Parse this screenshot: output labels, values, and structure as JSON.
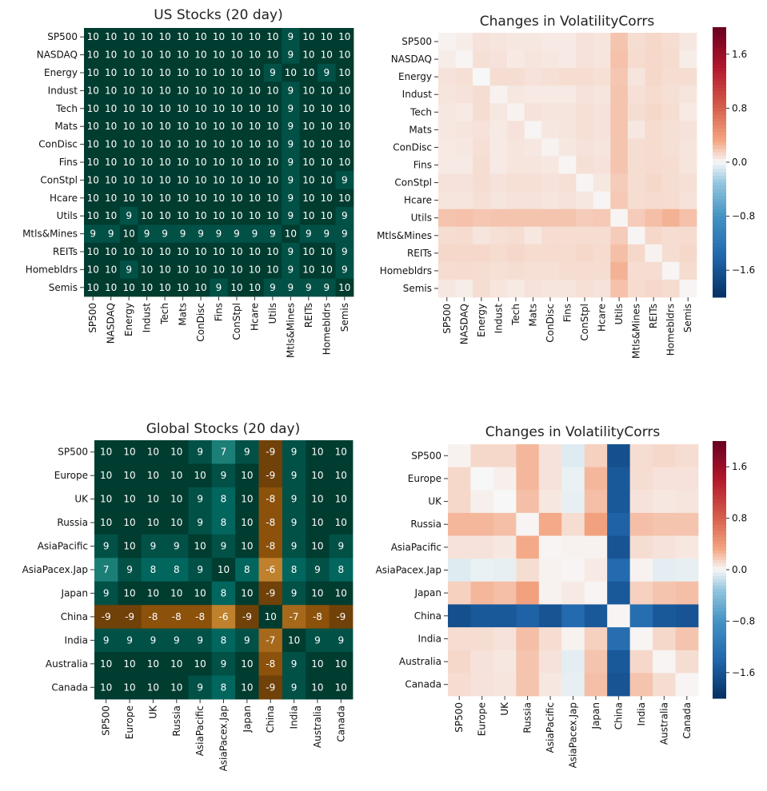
{
  "chart_data": [
    {
      "type": "heatmap",
      "title": "US Stocks (20 day)",
      "palette": "BrBG",
      "vmin": -10,
      "vmax": 10,
      "annotated": true,
      "rows": [
        "SP500",
        "NASDAQ",
        "Energy",
        "Indust",
        "Tech",
        "Mats",
        "ConDisc",
        "Fins",
        "ConStpl",
        "Hcare",
        "Utils",
        "Mtls&Mines",
        "REITs",
        "Homebldrs",
        "Semis"
      ],
      "cols": [
        "SP500",
        "NASDAQ",
        "Energy",
        "Indust",
        "Tech",
        "Mats",
        "ConDisc",
        "Fins",
        "ConStpl",
        "Hcare",
        "Utils",
        "Mtls&Mines",
        "REITs",
        "Homebldrs",
        "Semis"
      ],
      "values": [
        [
          10,
          10,
          10,
          10,
          10,
          10,
          10,
          10,
          10,
          10,
          10,
          9,
          10,
          10,
          10
        ],
        [
          10,
          10,
          10,
          10,
          10,
          10,
          10,
          10,
          10,
          10,
          10,
          9,
          10,
          10,
          10
        ],
        [
          10,
          10,
          10,
          10,
          10,
          10,
          10,
          10,
          10,
          10,
          9,
          10,
          10,
          9,
          10
        ],
        [
          10,
          10,
          10,
          10,
          10,
          10,
          10,
          10,
          10,
          10,
          10,
          9,
          10,
          10,
          10
        ],
        [
          10,
          10,
          10,
          10,
          10,
          10,
          10,
          10,
          10,
          10,
          10,
          9,
          10,
          10,
          10
        ],
        [
          10,
          10,
          10,
          10,
          10,
          10,
          10,
          10,
          10,
          10,
          10,
          9,
          10,
          10,
          10
        ],
        [
          10,
          10,
          10,
          10,
          10,
          10,
          10,
          10,
          10,
          10,
          10,
          9,
          10,
          10,
          10
        ],
        [
          10,
          10,
          10,
          10,
          10,
          10,
          10,
          10,
          10,
          10,
          10,
          9,
          10,
          10,
          10
        ],
        [
          10,
          10,
          10,
          10,
          10,
          10,
          10,
          10,
          10,
          10,
          10,
          9,
          10,
          10,
          9
        ],
        [
          10,
          10,
          10,
          10,
          10,
          10,
          10,
          10,
          10,
          10,
          10,
          9,
          10,
          10,
          10
        ],
        [
          10,
          10,
          9,
          10,
          10,
          10,
          10,
          10,
          10,
          10,
          10,
          9,
          10,
          10,
          9
        ],
        [
          9,
          9,
          10,
          9,
          9,
          9,
          9,
          9,
          9,
          9,
          9,
          10,
          9,
          9,
          9
        ],
        [
          10,
          10,
          10,
          10,
          10,
          10,
          10,
          10,
          10,
          10,
          10,
          9,
          10,
          10,
          9
        ],
        [
          10,
          10,
          9,
          10,
          10,
          10,
          10,
          10,
          10,
          10,
          10,
          9,
          10,
          10,
          9
        ],
        [
          10,
          10,
          10,
          10,
          10,
          10,
          10,
          9,
          10,
          10,
          9,
          9,
          9,
          9,
          10
        ]
      ]
    },
    {
      "type": "heatmap",
      "title": "Changes in VolatilityCorrs",
      "palette": "RdBu_r",
      "vmin": -2,
      "vmax": 2,
      "annotated": false,
      "colorbar_ticks": [
        "1.6",
        "0.8",
        "0.0",
        "−0.8",
        "−1.6"
      ],
      "colorbar_tick_values": [
        1.6,
        0.8,
        0.0,
        -0.8,
        -1.6
      ],
      "rows": [
        "SP500",
        "NASDAQ",
        "Energy",
        "Indust",
        "Tech",
        "Mats",
        "ConDisc",
        "Fins",
        "ConStpl",
        "Hcare",
        "Utils",
        "Mtls&Mines",
        "REITs",
        "Homebldrs",
        "Semis"
      ],
      "cols": [
        "SP500",
        "NASDAQ",
        "Energy",
        "Indust",
        "Tech",
        "Mats",
        "ConDisc",
        "Fins",
        "ConStpl",
        "Hcare",
        "Utils",
        "Mtls&Mines",
        "REITs",
        "Homebldrs",
        "Semis"
      ],
      "values": [
        [
          0.02,
          0.04,
          0.08,
          0.07,
          0.06,
          0.06,
          0.05,
          0.05,
          0.08,
          0.07,
          0.2,
          0.1,
          0.12,
          0.1,
          0.06
        ],
        [
          0.04,
          0.01,
          0.09,
          0.08,
          0.05,
          0.07,
          0.06,
          0.05,
          0.08,
          0.07,
          0.21,
          0.11,
          0.12,
          0.11,
          0.04
        ],
        [
          0.08,
          0.09,
          0.0,
          0.1,
          0.1,
          0.08,
          0.09,
          0.1,
          0.1,
          0.09,
          0.19,
          0.07,
          0.12,
          0.1,
          0.1
        ],
        [
          0.07,
          0.08,
          0.1,
          0.02,
          0.06,
          0.05,
          0.05,
          0.05,
          0.08,
          0.07,
          0.2,
          0.09,
          0.11,
          0.09,
          0.07
        ],
        [
          0.06,
          0.05,
          0.1,
          0.06,
          0.02,
          0.08,
          0.07,
          0.07,
          0.09,
          0.08,
          0.2,
          0.1,
          0.12,
          0.1,
          0.05
        ],
        [
          0.06,
          0.07,
          0.08,
          0.05,
          0.08,
          0.01,
          0.06,
          0.07,
          0.09,
          0.08,
          0.2,
          0.06,
          0.11,
          0.09,
          0.08
        ],
        [
          0.05,
          0.06,
          0.09,
          0.05,
          0.07,
          0.06,
          0.02,
          0.06,
          0.08,
          0.07,
          0.2,
          0.1,
          0.11,
          0.09,
          0.07
        ],
        [
          0.05,
          0.05,
          0.1,
          0.05,
          0.07,
          0.07,
          0.06,
          0.01,
          0.09,
          0.08,
          0.2,
          0.1,
          0.11,
          0.1,
          0.07
        ],
        [
          0.08,
          0.08,
          0.1,
          0.08,
          0.09,
          0.09,
          0.08,
          0.09,
          0.01,
          0.06,
          0.17,
          0.1,
          0.12,
          0.1,
          0.09
        ],
        [
          0.07,
          0.07,
          0.09,
          0.07,
          0.08,
          0.08,
          0.07,
          0.08,
          0.06,
          0.01,
          0.18,
          0.1,
          0.11,
          0.1,
          0.08
        ],
        [
          0.2,
          0.21,
          0.19,
          0.2,
          0.2,
          0.2,
          0.2,
          0.2,
          0.17,
          0.18,
          0.01,
          0.17,
          0.22,
          0.27,
          0.21
        ],
        [
          0.1,
          0.11,
          0.07,
          0.09,
          0.1,
          0.06,
          0.1,
          0.1,
          0.1,
          0.1,
          0.17,
          0.01,
          0.12,
          0.1,
          0.11
        ],
        [
          0.12,
          0.12,
          0.12,
          0.11,
          0.12,
          0.11,
          0.11,
          0.11,
          0.12,
          0.11,
          0.22,
          0.12,
          0.02,
          0.1,
          0.12
        ],
        [
          0.1,
          0.11,
          0.1,
          0.09,
          0.1,
          0.09,
          0.09,
          0.1,
          0.1,
          0.1,
          0.27,
          0.1,
          0.1,
          0.01,
          0.11
        ],
        [
          0.06,
          0.04,
          0.1,
          0.07,
          0.05,
          0.08,
          0.07,
          0.07,
          0.09,
          0.08,
          0.21,
          0.11,
          0.12,
          0.11,
          0.01
        ]
      ]
    },
    {
      "type": "heatmap",
      "title": "Global Stocks (20 day)",
      "palette": "BrBG",
      "vmin": -10,
      "vmax": 10,
      "annotated": true,
      "rows": [
        "SP500",
        "Europe",
        "UK",
        "Russia",
        "AsiaPacific",
        "AsiaPacex.Jap",
        "Japan",
        "China",
        "India",
        "Australia",
        "Canada"
      ],
      "cols": [
        "SP500",
        "Europe",
        "UK",
        "Russia",
        "AsiaPacific",
        "AsiaPacex.Jap",
        "Japan",
        "China",
        "India",
        "Australia",
        "Canada"
      ],
      "values": [
        [
          10,
          10,
          10,
          10,
          9,
          7,
          9,
          -9,
          9,
          10,
          10
        ],
        [
          10,
          10,
          10,
          10,
          10,
          9,
          10,
          -9,
          9,
          10,
          10
        ],
        [
          10,
          10,
          10,
          10,
          9,
          8,
          10,
          -8,
          9,
          10,
          10
        ],
        [
          10,
          10,
          10,
          10,
          9,
          8,
          10,
          -8,
          9,
          10,
          10
        ],
        [
          9,
          10,
          9,
          9,
          10,
          9,
          10,
          -8,
          9,
          10,
          9
        ],
        [
          7,
          9,
          8,
          8,
          9,
          10,
          8,
          -6,
          8,
          9,
          8
        ],
        [
          9,
          10,
          10,
          10,
          10,
          8,
          10,
          -9,
          9,
          10,
          10
        ],
        [
          -9,
          -9,
          -8,
          -8,
          -8,
          -6,
          -9,
          10,
          -7,
          -8,
          -9
        ],
        [
          9,
          9,
          9,
          9,
          9,
          8,
          9,
          -7,
          10,
          9,
          9
        ],
        [
          10,
          10,
          10,
          10,
          10,
          9,
          10,
          -8,
          9,
          10,
          10
        ],
        [
          10,
          10,
          10,
          10,
          9,
          8,
          10,
          -9,
          9,
          10,
          10
        ]
      ]
    },
    {
      "type": "heatmap",
      "title": "Changes in VolatilityCorrs",
      "palette": "RdBu_r",
      "vmin": -2,
      "vmax": 2,
      "annotated": false,
      "colorbar_ticks": [
        "1.6",
        "0.8",
        "0.0",
        "−0.8",
        "−1.6"
      ],
      "colorbar_tick_values": [
        1.6,
        0.8,
        0.0,
        -0.8,
        -1.6
      ],
      "rows": [
        "SP500",
        "Europe",
        "UK",
        "Russia",
        "AsiaPacific",
        "AsiaPacex.Jap",
        "Japan",
        "China",
        "India",
        "Australia",
        "Canada"
      ],
      "cols": [
        "SP500",
        "Europe",
        "UK",
        "Russia",
        "AsiaPacific",
        "AsiaPacex.Jap",
        "Japan",
        "China",
        "India",
        "Australia",
        "Canada"
      ],
      "values": [
        [
          0.02,
          0.12,
          0.12,
          0.25,
          0.08,
          -0.08,
          0.15,
          -1.65,
          0.1,
          0.12,
          0.1
        ],
        [
          0.12,
          0.0,
          0.03,
          0.25,
          0.08,
          -0.04,
          0.25,
          -1.55,
          0.1,
          0.08,
          0.08
        ],
        [
          0.12,
          0.03,
          0.0,
          0.22,
          0.06,
          -0.05,
          0.22,
          -1.55,
          0.08,
          0.06,
          0.07
        ],
        [
          0.25,
          0.25,
          0.22,
          0.01,
          0.3,
          0.1,
          0.35,
          -1.45,
          0.22,
          0.2,
          0.2
        ],
        [
          0.08,
          0.08,
          0.06,
          0.3,
          0.01,
          0.02,
          0.02,
          -1.6,
          0.1,
          0.08,
          0.06
        ],
        [
          -0.08,
          -0.04,
          -0.05,
          0.1,
          0.02,
          0.01,
          0.05,
          -1.35,
          0.02,
          -0.06,
          -0.05
        ],
        [
          0.15,
          0.25,
          0.22,
          0.35,
          0.02,
          0.05,
          0.01,
          -1.55,
          0.15,
          0.2,
          0.22
        ],
        [
          -1.65,
          -1.55,
          -1.55,
          -1.45,
          -1.6,
          -1.35,
          -1.55,
          0.01,
          -1.3,
          -1.55,
          -1.6
        ],
        [
          0.1,
          0.1,
          0.08,
          0.22,
          0.1,
          0.02,
          0.15,
          -1.3,
          0.01,
          0.12,
          0.2
        ],
        [
          0.12,
          0.08,
          0.06,
          0.2,
          0.08,
          -0.06,
          0.2,
          -1.55,
          0.12,
          0.01,
          0.1
        ],
        [
          0.1,
          0.08,
          0.07,
          0.2,
          0.06,
          -0.05,
          0.22,
          -1.6,
          0.2,
          0.1,
          0.01
        ]
      ]
    }
  ]
}
